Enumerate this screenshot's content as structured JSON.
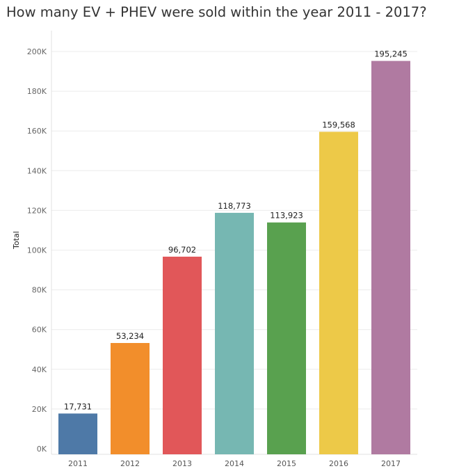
{
  "chart_data": {
    "type": "bar",
    "title": "How many EV + PHEV were sold within the year 2011 - 2017?",
    "xlabel": "",
    "ylabel": "Total",
    "ylim": [
      0,
      200000
    ],
    "yticks": [
      0,
      20000,
      40000,
      60000,
      80000,
      100000,
      120000,
      140000,
      160000,
      180000,
      200000
    ],
    "ytick_labels": [
      "0K",
      "20K",
      "40K",
      "60K",
      "80K",
      "100K",
      "120K",
      "140K",
      "160K",
      "180K",
      "200K"
    ],
    "categories": [
      "2011",
      "2012",
      "2013",
      "2014",
      "2015",
      "2016",
      "2017"
    ],
    "values": [
      17731,
      53234,
      96702,
      118773,
      113923,
      159568,
      195245
    ],
    "data_labels": [
      "17,731",
      "53,234",
      "96,702",
      "118,773",
      "113,923",
      "159,568",
      "195,245"
    ],
    "colors": [
      "#4e79a7",
      "#f28e2b",
      "#e15759",
      "#76b7b2",
      "#59a14f",
      "#edc948",
      "#b07aa1"
    ],
    "grid": true,
    "legend": "none"
  }
}
